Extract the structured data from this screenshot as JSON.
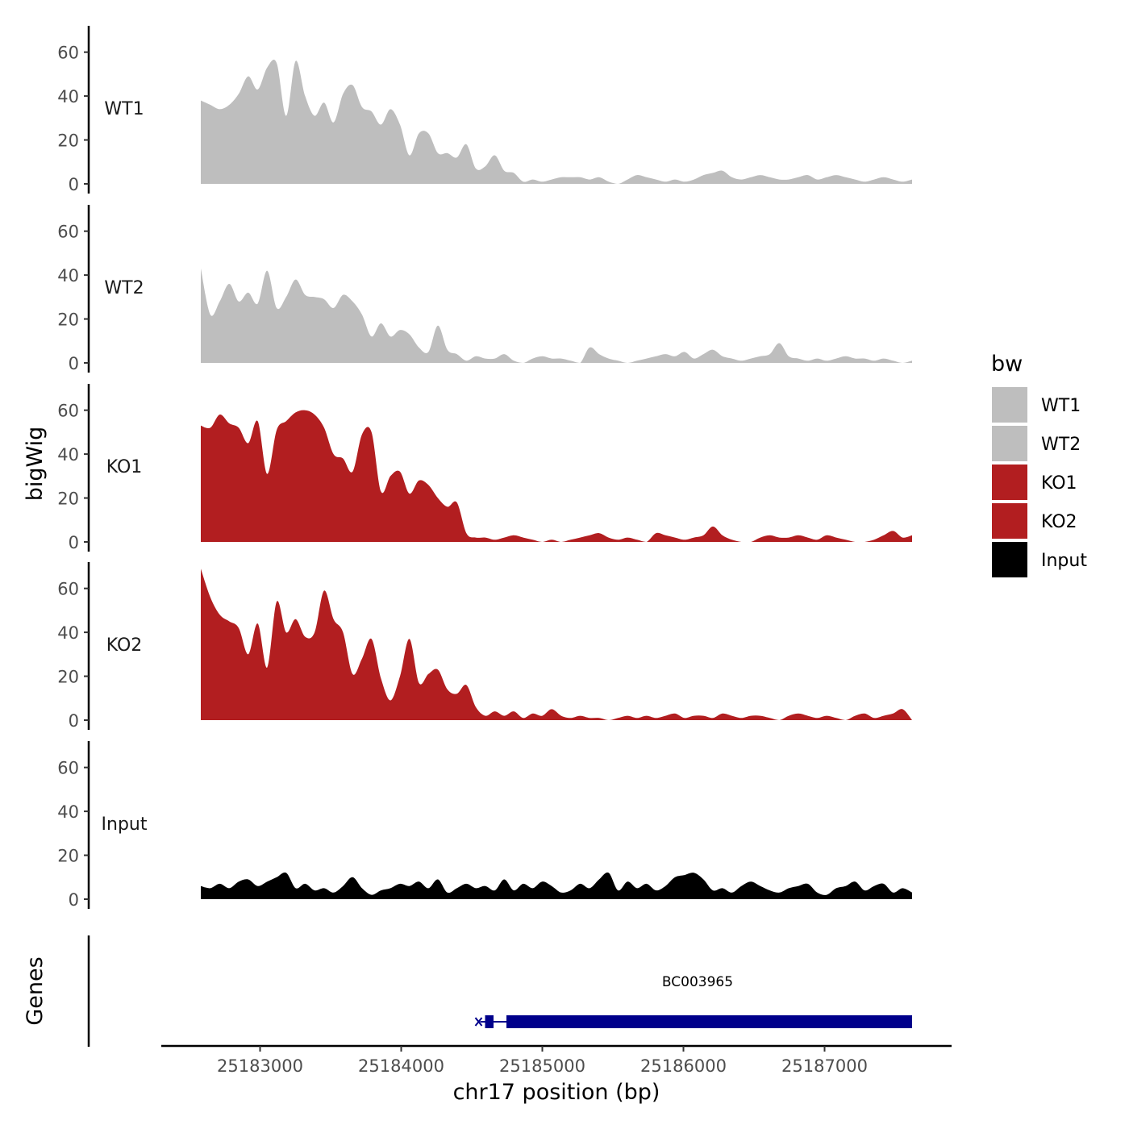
{
  "chart_data": {
    "type": "area",
    "title": "",
    "ylabel": "bigWig",
    "genes_label": "Genes",
    "xlabel": "chr17 position (bp)",
    "xlim": [
      25182300,
      25187900
    ],
    "ylim": [
      0,
      72
    ],
    "x_ticks": [
      25183000,
      25184000,
      25185000,
      25186000,
      25187000
    ],
    "y_ticks": [
      0,
      20,
      40,
      60
    ],
    "track_start": 25182580,
    "track_end": 25187620,
    "legend": {
      "title": "bw",
      "position": "right",
      "entries": [
        {
          "name": "WT1",
          "color": "#bebebe"
        },
        {
          "name": "WT2",
          "color": "#bebebe"
        },
        {
          "name": "KO1",
          "color": "#b21e20"
        },
        {
          "name": "KO2",
          "color": "#b21e20"
        },
        {
          "name": "Input",
          "color": "#000000"
        }
      ]
    },
    "series": [
      {
        "name": "WT1",
        "color": "#bebebe",
        "values": [
          38,
          36,
          34,
          36,
          41,
          49,
          43,
          53,
          55,
          31,
          56,
          40,
          31,
          37,
          28,
          41,
          45,
          35,
          33,
          27,
          34,
          27,
          13,
          23,
          23,
          14,
          14,
          12,
          18,
          7,
          8,
          13,
          6,
          5,
          1,
          2,
          1,
          2,
          3,
          3,
          3,
          2,
          3,
          1,
          0,
          2,
          4,
          3,
          2,
          1,
          2,
          1,
          2,
          4,
          5,
          6,
          3,
          2,
          3,
          4,
          3,
          2,
          2,
          3,
          4,
          2,
          3,
          4,
          3,
          2,
          1,
          2,
          3,
          2,
          1,
          2
        ]
      },
      {
        "name": "WT2",
        "color": "#bebebe",
        "values": [
          43,
          22,
          28,
          36,
          28,
          32,
          27,
          42,
          25,
          30,
          38,
          31,
          30,
          29,
          25,
          31,
          28,
          22,
          12,
          18,
          12,
          15,
          13,
          7,
          5,
          17,
          6,
          4,
          1,
          3,
          2,
          2,
          4,
          1,
          0,
          2,
          3,
          2,
          2,
          1,
          0,
          7,
          4,
          2,
          1,
          0,
          1,
          2,
          3,
          4,
          3,
          5,
          2,
          4,
          6,
          3,
          2,
          1,
          2,
          3,
          4,
          9,
          3,
          2,
          1,
          2,
          1,
          2,
          3,
          2,
          2,
          1,
          2,
          1,
          0,
          1
        ]
      },
      {
        "name": "KO1",
        "color": "#b21e20",
        "values": [
          53,
          52,
          58,
          54,
          52,
          45,
          55,
          31,
          51,
          55,
          59,
          60,
          58,
          52,
          40,
          38,
          32,
          49,
          50,
          23,
          30,
          32,
          22,
          28,
          26,
          20,
          16,
          18,
          4,
          2,
          2,
          1,
          2,
          3,
          2,
          1,
          0,
          1,
          0,
          1,
          2,
          3,
          4,
          2,
          1,
          2,
          1,
          0,
          4,
          3,
          2,
          1,
          2,
          3,
          7,
          3,
          1,
          0,
          0,
          2,
          3,
          2,
          2,
          3,
          2,
          1,
          3,
          2,
          1,
          0,
          0,
          1,
          3,
          5,
          2,
          3
        ]
      },
      {
        "name": "KO2",
        "color": "#b21e20",
        "values": [
          69,
          56,
          48,
          45,
          42,
          30,
          44,
          24,
          54,
          40,
          46,
          38,
          40,
          59,
          46,
          40,
          21,
          28,
          37,
          19,
          9,
          20,
          37,
          17,
          21,
          23,
          14,
          12,
          16,
          6,
          2,
          4,
          2,
          4,
          1,
          3,
          2,
          5,
          2,
          1,
          2,
          1,
          1,
          0,
          1,
          2,
          1,
          2,
          1,
          2,
          3,
          1,
          2,
          2,
          1,
          3,
          2,
          1,
          2,
          2,
          1,
          0,
          2,
          3,
          2,
          1,
          2,
          1,
          0,
          2,
          3,
          1,
          2,
          3,
          5,
          0
        ]
      },
      {
        "name": "Input",
        "color": "#000000",
        "values": [
          6,
          5,
          7,
          5,
          8,
          9,
          6,
          8,
          10,
          12,
          5,
          7,
          4,
          5,
          3,
          6,
          10,
          5,
          2,
          4,
          5,
          7,
          6,
          8,
          5,
          9,
          3,
          5,
          7,
          5,
          6,
          4,
          9,
          4,
          7,
          5,
          8,
          6,
          3,
          4,
          7,
          5,
          9,
          12,
          4,
          8,
          5,
          7,
          4,
          6,
          10,
          11,
          12,
          9,
          4,
          5,
          3,
          6,
          8,
          6,
          4,
          3,
          5,
          6,
          7,
          3,
          2,
          5,
          6,
          8,
          4,
          6,
          7,
          3,
          5,
          3
        ]
      }
    ],
    "genes": [
      {
        "name": "BC003965",
        "start": 25184560,
        "end": 25187620,
        "utr_start": 25184560,
        "utr_end": 25184700,
        "color": "#00008b"
      }
    ]
  }
}
